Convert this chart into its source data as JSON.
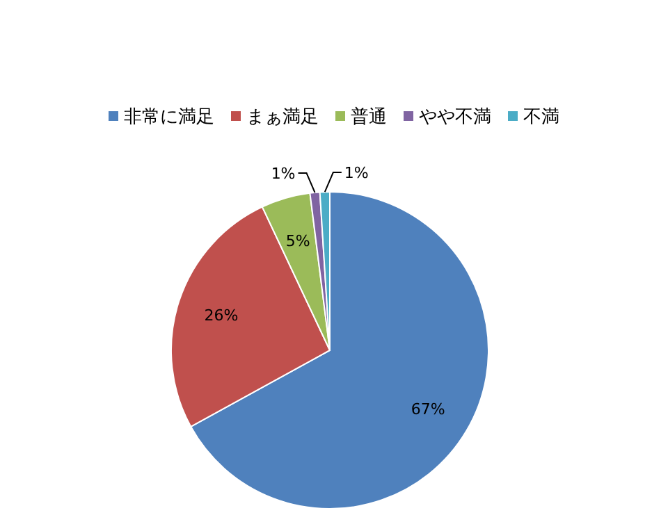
{
  "chart_data": {
    "type": "pie",
    "categories": [
      "非常に満足",
      "まぁ満足",
      "普通",
      "やや不満",
      "不満"
    ],
    "values": [
      67,
      26,
      5,
      1,
      1
    ],
    "colors": [
      "#4f81bd",
      "#c0504d",
      "#9bbb59",
      "#8064a2",
      "#4bacc6"
    ],
    "value_labels": [
      "67%",
      "26%",
      "5%",
      "1%",
      "1%"
    ],
    "legend": "top"
  }
}
